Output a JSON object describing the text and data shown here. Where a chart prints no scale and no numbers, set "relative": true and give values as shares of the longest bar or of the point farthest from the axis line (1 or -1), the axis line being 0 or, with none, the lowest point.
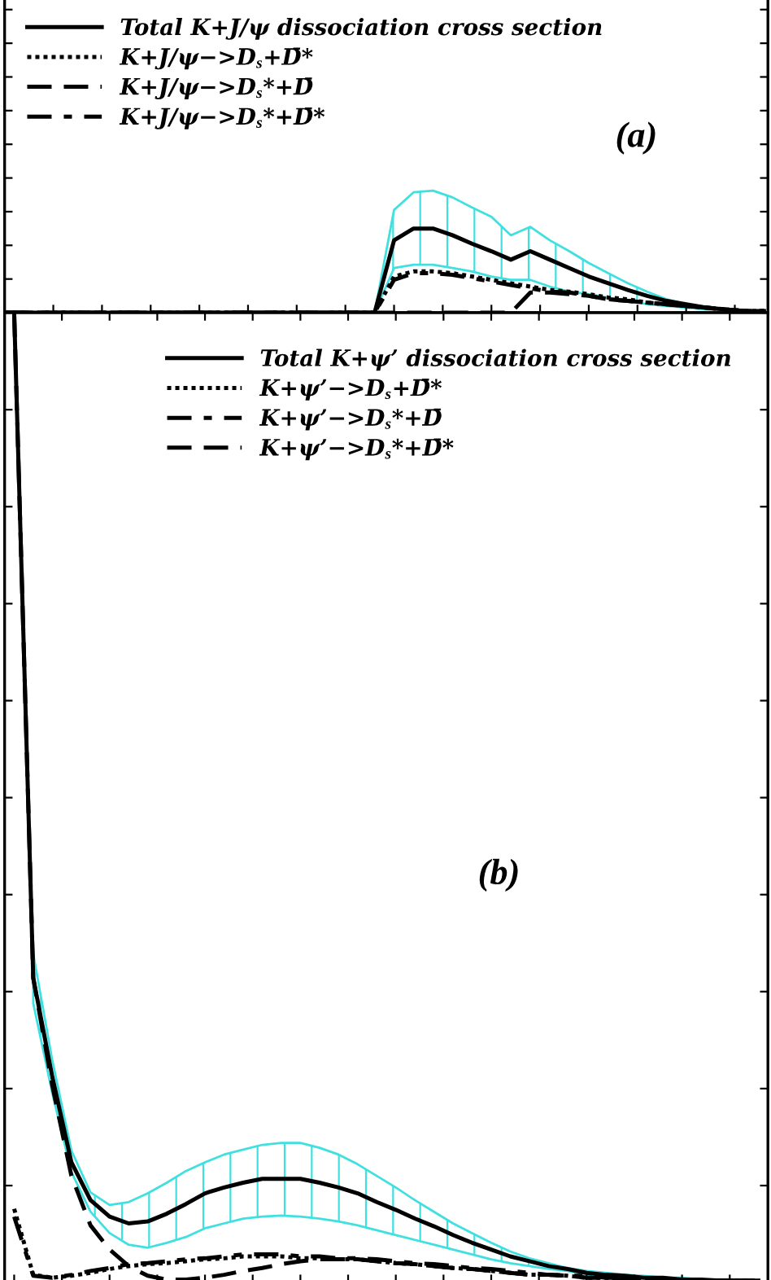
{
  "chart_data": [
    {
      "type": "line",
      "relative": true,
      "tick_labels": false,
      "legend": "top left",
      "grid": false,
      "marker": "none",
      "categories": [
        null,
        null,
        null,
        null,
        null,
        null,
        null,
        null,
        null,
        null,
        null,
        null,
        null,
        null,
        null,
        null,
        null,
        null,
        null,
        null,
        null,
        null,
        null,
        null,
        null,
        null,
        null,
        null,
        null,
        null,
        null,
        null,
        null,
        null,
        null,
        null,
        null,
        null,
        null,
        null
      ],
      "annotations": [
        "(a)"
      ],
      "series": [
        {
          "name": "Total K+J/ψ dissociation cross section",
          "color": "#000000",
          "line_style": "solid",
          "values": [
            0,
            0,
            0,
            0,
            0,
            0,
            0,
            0,
            0,
            0,
            0,
            0,
            0,
            0,
            0,
            0,
            0,
            0,
            0,
            0,
            0.86,
            1.0,
            1.0,
            0.92,
            0.82,
            0.73,
            0.63,
            0.73,
            0.63,
            0.53,
            0.43,
            0.35,
            0.27,
            0.2,
            0.14,
            0.1,
            0.06,
            0.04,
            0.02,
            0.02
          ],
          "upper": [
            0,
            0,
            0,
            0,
            0,
            0,
            0,
            0,
            0,
            0,
            0,
            0,
            0,
            0,
            0,
            0,
            0,
            0,
            0,
            0,
            1.22,
            1.43,
            1.45,
            1.37,
            1.25,
            1.14,
            0.92,
            1.02,
            0.86,
            0.73,
            0.59,
            0.47,
            0.35,
            0.25,
            0.16,
            0.1,
            0.06,
            0.04,
            0.02,
            0.02
          ],
          "lower": [
            0,
            0,
            0,
            0,
            0,
            0,
            0,
            0,
            0,
            0,
            0,
            0,
            0,
            0,
            0,
            0,
            0,
            0,
            0,
            0,
            0.53,
            0.57,
            0.57,
            0.53,
            0.49,
            0.43,
            0.39,
            0.39,
            0.31,
            0.25,
            0.22,
            0.18,
            0.14,
            0.1,
            0.08,
            0.06,
            0.04,
            0.02,
            0.02,
            0.02
          ]
        },
        {
          "name": "K+J/ψ−>D$_{s}$+D̄*",
          "color": "#000000",
          "line_style": "dotted",
          "values": [
            0,
            0,
            0,
            0,
            0,
            0,
            0,
            0,
            0,
            0,
            0,
            0,
            0,
            0,
            0,
            0,
            0,
            0,
            0,
            0,
            0.43,
            0.49,
            0.49,
            0.47,
            0.43,
            0.39,
            0.35,
            0.31,
            0.27,
            0.25,
            0.22,
            0.18,
            0.16,
            0.12,
            0.1,
            0.08,
            0.06,
            0.04,
            0.02,
            0.02
          ]
        },
        {
          "name": "K+J/ψ−>D$_{s}$*+D̄",
          "color": "#000000",
          "line_style": "dashed",
          "values": [
            0,
            0,
            0,
            0,
            0,
            0,
            0,
            0,
            0,
            0,
            0,
            0,
            0,
            0,
            0,
            0,
            0,
            0,
            0,
            0,
            0,
            0,
            0,
            0,
            0,
            0,
            0,
            0.24,
            0.24,
            0.22,
            0.2,
            0.16,
            0.14,
            0.12,
            0.1,
            0.08,
            0.06,
            0.04,
            0.02,
            0.02
          ]
        },
        {
          "name": "K+J/ψ−>D$_{s}$*+D̄*",
          "color": "#000000",
          "line_style": "dashdot",
          "values": [
            0,
            0,
            0,
            0,
            0,
            0,
            0,
            0,
            0,
            0,
            0,
            0,
            0,
            0,
            0,
            0,
            0,
            0,
            0,
            0,
            0.39,
            0.47,
            0.47,
            0.45,
            0.41,
            0.37,
            0.33,
            0.29,
            0.25,
            0.24,
            0.2,
            0.16,
            0.14,
            0.12,
            0.1,
            0.08,
            0.06,
            0.04,
            0.02,
            0.02
          ]
        }
      ]
    },
    {
      "type": "line",
      "relative": true,
      "tick_labels": false,
      "legend": "top right",
      "grid": false,
      "marker": "none",
      "categories": [
        null,
        null,
        null,
        null,
        null,
        null,
        null,
        null,
        null,
        null,
        null,
        null,
        null,
        null,
        null,
        null,
        null,
        null,
        null,
        null,
        null,
        null,
        null,
        null,
        null,
        null,
        null,
        null,
        null,
        null,
        null,
        null,
        null,
        null,
        null,
        null,
        null,
        null,
        null,
        null
      ],
      "annotations": [
        "(b)"
      ],
      "series": [
        {
          "name": "Total K+ψ’ dissociation cross section",
          "color": "#000000",
          "line_style": "solid",
          "values": [
            1.0,
            0.314,
            0.212,
            0.124,
            0.085,
            0.068,
            0.061,
            0.063,
            0.071,
            0.081,
            0.092,
            0.098,
            0.103,
            0.107,
            0.107,
            0.107,
            0.103,
            0.098,
            0.092,
            0.083,
            0.075,
            0.066,
            0.058,
            0.049,
            0.041,
            0.034,
            0.027,
            0.022,
            0.017,
            0.014,
            0.01,
            0.008,
            0.007,
            0.005,
            0.005,
            0.003,
            0.003,
            0.002,
            0.002,
            0.002
          ],
          "upper": [
            null,
            0.339,
            0.229,
            0.136,
            0.093,
            0.08,
            0.083,
            0.092,
            0.103,
            0.115,
            0.124,
            0.132,
            0.137,
            0.142,
            0.144,
            0.144,
            0.139,
            0.132,
            0.122,
            0.11,
            0.098,
            0.085,
            0.073,
            0.061,
            0.051,
            0.041,
            0.032,
            0.025,
            0.02,
            0.015,
            0.012,
            0.01,
            0.008,
            0.007,
            0.005,
            0.005,
            0.003,
            0.003,
            0.002,
            0.002
          ],
          "lower": [
            null,
            0.288,
            0.195,
            0.114,
            0.073,
            0.051,
            0.039,
            0.036,
            0.041,
            0.047,
            0.056,
            0.061,
            0.066,
            0.068,
            0.069,
            0.068,
            0.066,
            0.063,
            0.059,
            0.054,
            0.049,
            0.044,
            0.039,
            0.034,
            0.029,
            0.024,
            0.02,
            0.017,
            0.014,
            0.012,
            0.008,
            0.007,
            0.007,
            0.005,
            0.003,
            0.003,
            0.003,
            0.002,
            0.002,
            0.002
          ]
        },
        {
          "name": "K+ψ’−>D$_{s}$+D̄*",
          "color": "#000000",
          "line_style": "dotted",
          "values": [
            0.076,
            0.008,
            0.005,
            0.007,
            0.01,
            0.014,
            0.017,
            0.019,
            0.02,
            0.022,
            0.024,
            0.025,
            0.027,
            0.027,
            0.027,
            0.025,
            0.025,
            0.024,
            0.024,
            0.022,
            0.02,
            0.019,
            0.017,
            0.015,
            0.014,
            0.012,
            0.01,
            0.008,
            0.008,
            0.007,
            0.005,
            0.005,
            0.003,
            0.003,
            0.003,
            0.002,
            0.002,
            0.002,
            0.002,
            0.002
          ]
        },
        {
          "name": "K+ψ’−>D$_{s}$*+D̄",
          "color": "#000000",
          "line_style": "dashdot",
          "values": [
            0.068,
            0.007,
            0.005,
            0.008,
            0.012,
            0.015,
            0.019,
            0.02,
            0.022,
            0.024,
            0.025,
            0.027,
            0.029,
            0.029,
            0.029,
            0.027,
            0.027,
            0.025,
            0.025,
            0.024,
            0.022,
            0.02,
            0.019,
            0.017,
            0.015,
            0.014,
            0.012,
            0.01,
            0.008,
            0.007,
            0.007,
            0.005,
            0.005,
            0.003,
            0.003,
            0.003,
            0.002,
            0.002,
            0.002,
            0.002
          ]
        },
        {
          "name": "K+ψ’−>D$_{s}$*+D̄*",
          "color": "#000000",
          "line_style": "dashed",
          "values": [
            1.0,
            0.314,
            0.203,
            0.11,
            0.059,
            0.034,
            0.017,
            0.007,
            0.003,
            0.003,
            0.005,
            0.008,
            0.012,
            0.015,
            0.019,
            0.022,
            0.024,
            0.024,
            0.024,
            0.022,
            0.02,
            0.019,
            0.017,
            0.015,
            0.014,
            0.012,
            0.01,
            0.008,
            0.008,
            0.007,
            0.005,
            0.005,
            0.003,
            0.003,
            0.003,
            0.002,
            0.002,
            0.002,
            0.002,
            0.002
          ]
        }
      ]
    }
  ]
}
